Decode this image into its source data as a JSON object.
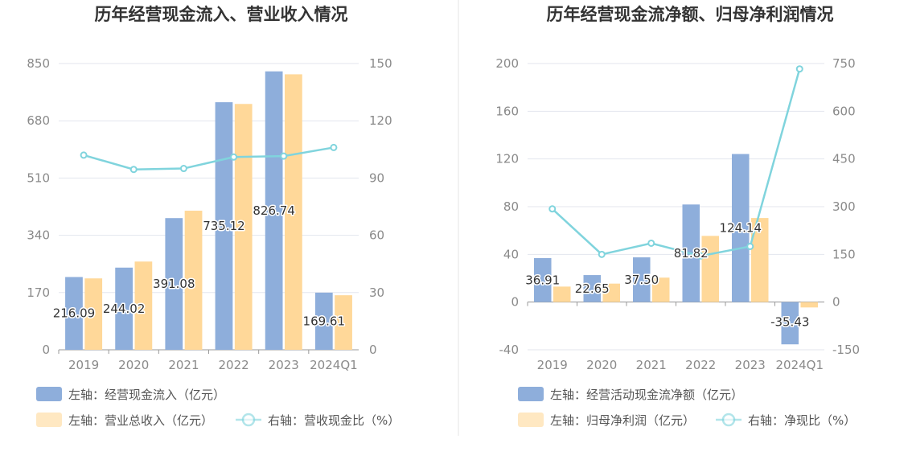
{
  "colors": {
    "bar_left": "#8eaedb",
    "bar_right": "#ffd899",
    "line": "#80d4dd",
    "grid": "#e3e6ee",
    "axis": "#999999"
  },
  "chart_data": [
    {
      "type": "bar+line",
      "title": "历年经营现金流入、营业收入情况",
      "categories": [
        "2019",
        "2020",
        "2021",
        "2022",
        "2023",
        "2024Q1"
      ],
      "left_axis": {
        "min": 0,
        "max": 850,
        "ticks": [
          "0",
          "170",
          "340",
          "510",
          "680",
          "850"
        ]
      },
      "right_axis": {
        "min": 0,
        "max": 150,
        "ticks": [
          "0",
          "30",
          "60",
          "90",
          "120",
          "150"
        ]
      },
      "series": [
        {
          "name": "左轴：经营现金流入（亿元）",
          "axis": "left",
          "kind": "bar",
          "values": [
            216.09,
            244.02,
            391.08,
            735.12,
            826.74,
            169.61
          ],
          "labels": [
            "216.09",
            "244.02",
            "391.08",
            "735.12",
            "826.74",
            "169.61"
          ]
        },
        {
          "name": "左轴：营业总收入（亿元）",
          "axis": "left",
          "kind": "bar",
          "values": [
            212,
            262,
            413,
            730,
            818,
            162
          ]
        },
        {
          "name": "右轴：营收现金比（%）",
          "axis": "right",
          "kind": "line",
          "values": [
            102,
            94.5,
            95,
            101,
            101.5,
            106
          ]
        }
      ]
    },
    {
      "type": "bar+line",
      "title": "历年经营现金流净额、归母净利润情况",
      "categories": [
        "2019",
        "2020",
        "2021",
        "2022",
        "2023",
        "2024Q1"
      ],
      "left_axis": {
        "min": -40,
        "max": 200,
        "ticks": [
          "-40",
          "0",
          "40",
          "80",
          "120",
          "160",
          "200"
        ]
      },
      "right_axis": {
        "min": -150,
        "max": 750,
        "ticks": [
          "-150",
          "0",
          "150",
          "300",
          "450",
          "600",
          "750"
        ]
      },
      "series": [
        {
          "name": "左轴：经营活动现金流净额（亿元）",
          "axis": "left",
          "kind": "bar",
          "values": [
            36.91,
            22.65,
            37.5,
            81.82,
            124.14,
            -35.43
          ],
          "labels": [
            "36.91",
            "22.65",
            "37.50",
            "81.82",
            "124.14",
            "-35.43"
          ]
        },
        {
          "name": "左轴：归母净利润（亿元）",
          "axis": "left",
          "kind": "bar",
          "values": [
            13,
            15.5,
            20.5,
            55.5,
            70.5,
            -4.5
          ]
        },
        {
          "name": "右轴：净现比（%）",
          "axis": "right",
          "kind": "line",
          "values": [
            293,
            150,
            185,
            145,
            175,
            733
          ]
        }
      ]
    }
  ]
}
